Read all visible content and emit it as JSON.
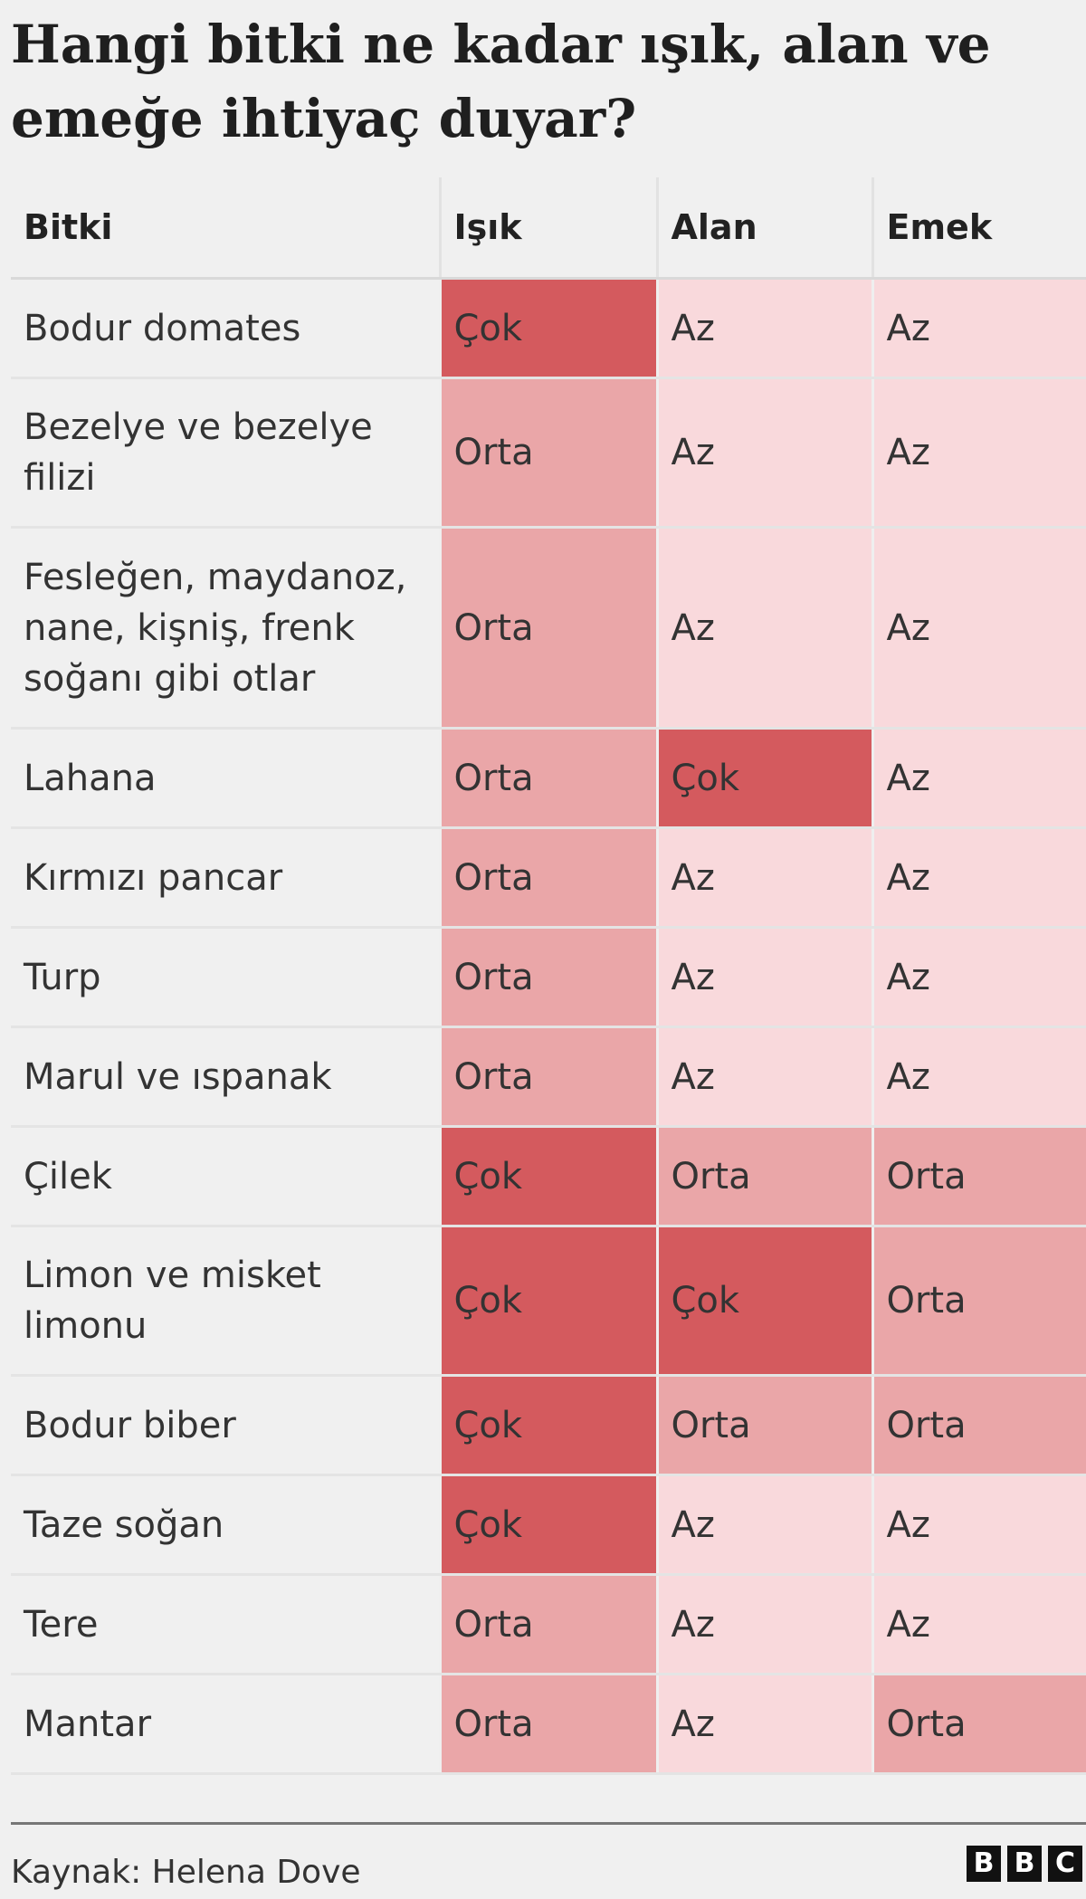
{
  "title": "Hangi bitki ne kadar ışık, alan ve emeğe ihtiyaç duyar?",
  "source": "Kaynak: Helena Dove",
  "logo": [
    "B",
    "B",
    "C"
  ],
  "colors": {
    "Çok": "#d45a5e",
    "Orta": "#eaa6a8",
    "Az": "#f9d9dc"
  },
  "chart_data": {
    "type": "table",
    "title": "Hangi bitki ne kadar ışık, alan ve emeğe ihtiyaç duyar?",
    "columns": [
      "Bitki",
      "Işık",
      "Alan",
      "Emek"
    ],
    "rows": [
      [
        "Bodur domates",
        "Çok",
        "Az",
        "Az"
      ],
      [
        "Bezelye ve bezelye filizi",
        "Orta",
        "Az",
        "Az"
      ],
      [
        "Fesleğen, maydanoz, nane, kişniş, frenk soğanı gibi otlar",
        "Orta",
        "Az",
        "Az"
      ],
      [
        "Lahana",
        "Orta",
        "Çok",
        "Az"
      ],
      [
        "Kırmızı pancar",
        "Orta",
        "Az",
        "Az"
      ],
      [
        "Turp",
        "Orta",
        "Az",
        "Az"
      ],
      [
        "Marul ve ıspanak",
        "Orta",
        "Az",
        "Az"
      ],
      [
        "Çilek",
        "Çok",
        "Orta",
        "Orta"
      ],
      [
        "Limon ve misket limonu",
        "Çok",
        "Çok",
        "Orta"
      ],
      [
        "Bodur biber",
        "Çok",
        "Orta",
        "Orta"
      ],
      [
        "Taze soğan",
        "Çok",
        "Az",
        "Az"
      ],
      [
        "Tere",
        "Orta",
        "Az",
        "Az"
      ],
      [
        "Mantar",
        "Orta",
        "Az",
        "Orta"
      ]
    ]
  }
}
